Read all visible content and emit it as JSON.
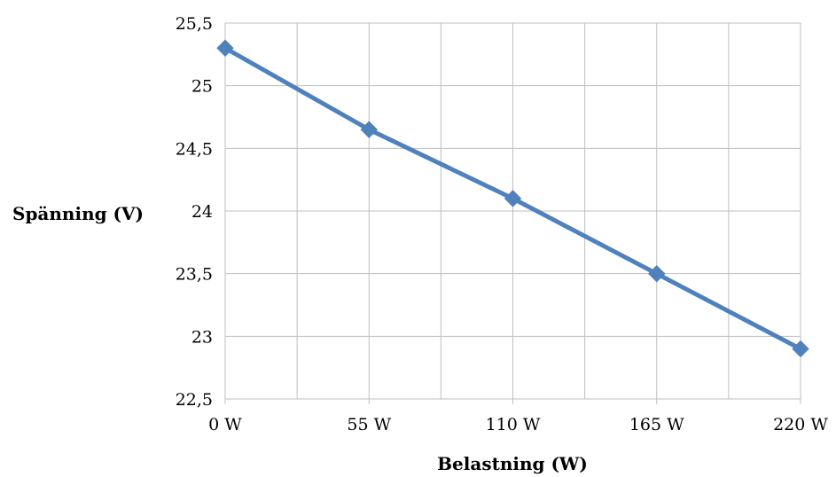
{
  "chart_data": {
    "type": "line",
    "title": "",
    "xlabel": "Belastning (W)",
    "ylabel": "Spänning (V)",
    "categories": [
      "0 W",
      "55 W",
      "110 W",
      "165 W",
      "220 W"
    ],
    "x": [
      0,
      55,
      110,
      165,
      220
    ],
    "series": [
      {
        "values": [
          25.3,
          24.65,
          24.1,
          23.5,
          22.9
        ]
      }
    ],
    "xlim": [
      0,
      220
    ],
    "ylim": [
      22.5,
      25.5
    ],
    "yticks": [
      22.5,
      23,
      23.5,
      24,
      24.5,
      25,
      25.5
    ],
    "ytick_labels": [
      "22,5",
      "23",
      "23,5",
      "24",
      "24,5",
      "25",
      "25,5"
    ],
    "grid": true,
    "x_minor_gridlines": true,
    "line_color": "#4f81bd",
    "marker": "diamond",
    "marker_color": "#4f81bd",
    "grid_color": "#bfbfbf"
  }
}
